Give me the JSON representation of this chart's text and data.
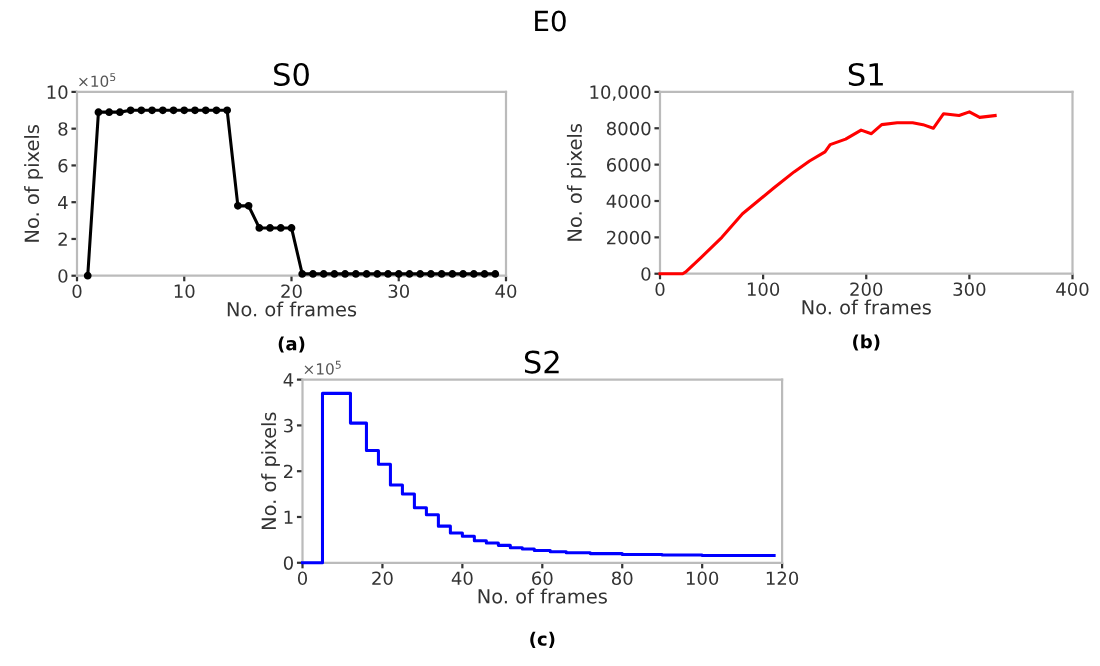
{
  "chart_data": [
    {
      "type": "line",
      "title": "S0",
      "xlabel": "No. of frames",
      "ylabel": "No. of pixels",
      "annotations": [
        "E0",
        "×10$^{5}$",
        "(a)"
      ],
      "color": "#000000",
      "marker": "circle",
      "grid": false,
      "legend": false,
      "x": [
        1,
        2,
        3,
        4,
        5,
        6,
        7,
        8,
        9,
        10,
        11,
        12,
        13,
        14,
        15,
        16,
        17,
        18,
        19,
        20,
        21,
        22,
        23,
        24,
        25,
        26,
        27,
        28,
        29,
        30,
        31,
        32,
        33,
        34,
        35,
        36,
        37,
        38,
        39
      ],
      "values": [
        0,
        8.9,
        8.9,
        8.9,
        9,
        9,
        9,
        9,
        9,
        9,
        9,
        9,
        9,
        9,
        3.8,
        3.8,
        2.6,
        2.6,
        2.6,
        2.6,
        0.1,
        0.1,
        0.1,
        0.1,
        0.1,
        0.1,
        0.1,
        0.1,
        0.1,
        0.1,
        0.1,
        0.1,
        0.1,
        0.1,
        0.1,
        0.1,
        0.1,
        0.1,
        0.1
      ],
      "xlim": [
        0,
        40
      ],
      "xticks": [
        0,
        10,
        20,
        30,
        40
      ],
      "ylim": [
        0,
        10
      ],
      "yticks": [
        0,
        2,
        4,
        6,
        8,
        10
      ]
    },
    {
      "type": "line",
      "title": "S1",
      "xlabel": "No. of frames",
      "ylabel": "No. of pixels",
      "annotations": [
        "(b)"
      ],
      "color": "#ff0000",
      "grid": false,
      "legend": false,
      "x": [
        0,
        22,
        25,
        40,
        60,
        80,
        95,
        110,
        130,
        145,
        160,
        165,
        180,
        195,
        205,
        215,
        230,
        245,
        255,
        265,
        275,
        290,
        300,
        310,
        325
      ],
      "values": [
        0,
        0,
        100,
        900,
        2000,
        3300,
        4000,
        4700,
        5600,
        6200,
        6700,
        7100,
        7400,
        7900,
        7700,
        8200,
        8300,
        8300,
        8200,
        8000,
        8800,
        8700,
        8900,
        8600,
        8700
      ],
      "xlim": [
        0,
        400
      ],
      "xticks": [
        0,
        100,
        200,
        300,
        400
      ],
      "ylim": [
        0,
        10000
      ],
      "yticks": [
        0,
        2000,
        4000,
        6000,
        8000,
        {
          "value": 10000,
          "label": "10,000"
        }
      ]
    },
    {
      "type": "step",
      "title": "S2",
      "xlabel": "No. of frames",
      "ylabel": "No. of pixels",
      "annotations": [
        "×10$^{5}$",
        "(c)"
      ],
      "color": "#0000ff",
      "grid": false,
      "legend": false,
      "x": [
        0,
        5,
        12,
        16,
        19,
        22,
        25,
        28,
        31,
        34,
        37,
        40,
        43,
        46,
        49,
        52,
        55,
        58,
        62,
        66,
        72,
        80,
        90,
        100,
        118
      ],
      "values": [
        0,
        3.7,
        3.05,
        2.45,
        2.15,
        1.7,
        1.5,
        1.2,
        1.05,
        0.8,
        0.65,
        0.58,
        0.48,
        0.43,
        0.38,
        0.33,
        0.3,
        0.27,
        0.24,
        0.22,
        0.2,
        0.18,
        0.17,
        0.16,
        0.16
      ],
      "xlim": [
        0,
        120
      ],
      "xticks": [
        0,
        20,
        40,
        60,
        80,
        100,
        120
      ],
      "ylim": [
        0,
        4
      ],
      "yticks": [
        0,
        1,
        2,
        3,
        4
      ]
    }
  ]
}
